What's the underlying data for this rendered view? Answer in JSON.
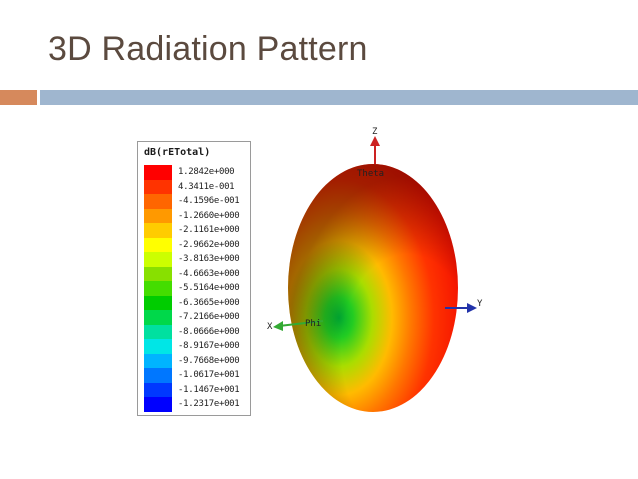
{
  "slide": {
    "title": "3D Radiation Pattern"
  },
  "legend": {
    "title": "dB(rETotal)",
    "entries": [
      {
        "value": "1.2842e+000",
        "color": "#ff0000"
      },
      {
        "value": "4.3411e-001",
        "color": "#ff3300"
      },
      {
        "value": "-4.1596e-001",
        "color": "#ff6600"
      },
      {
        "value": "-1.2660e+000",
        "color": "#ff9900"
      },
      {
        "value": "-2.1161e+000",
        "color": "#ffcc00"
      },
      {
        "value": "-2.9662e+000",
        "color": "#ffff00"
      },
      {
        "value": "-3.8163e+000",
        "color": "#ccff00"
      },
      {
        "value": "-4.6663e+000",
        "color": "#88e000"
      },
      {
        "value": "-5.5164e+000",
        "color": "#44dd00"
      },
      {
        "value": "-6.3665e+000",
        "color": "#00cc00"
      },
      {
        "value": "-7.2166e+000",
        "color": "#00d84a"
      },
      {
        "value": "-8.0666e+000",
        "color": "#00e0a0"
      },
      {
        "value": "-8.9167e+000",
        "color": "#00e6e6"
      },
      {
        "value": "-9.7668e+000",
        "color": "#00b4ff"
      },
      {
        "value": "-1.0617e+001",
        "color": "#0077ff"
      },
      {
        "value": "-1.1467e+001",
        "color": "#0038ff"
      },
      {
        "value": "-1.2317e+001",
        "color": "#0000ff"
      }
    ]
  },
  "plot": {
    "axes": {
      "z": "Z",
      "theta": "Theta",
      "x": "X",
      "phi": "Phi",
      "y": "Y"
    },
    "colors": {
      "z_axis": "#cc2222",
      "y_axis": "#2233aa",
      "x_axis": "#33aa33"
    }
  }
}
